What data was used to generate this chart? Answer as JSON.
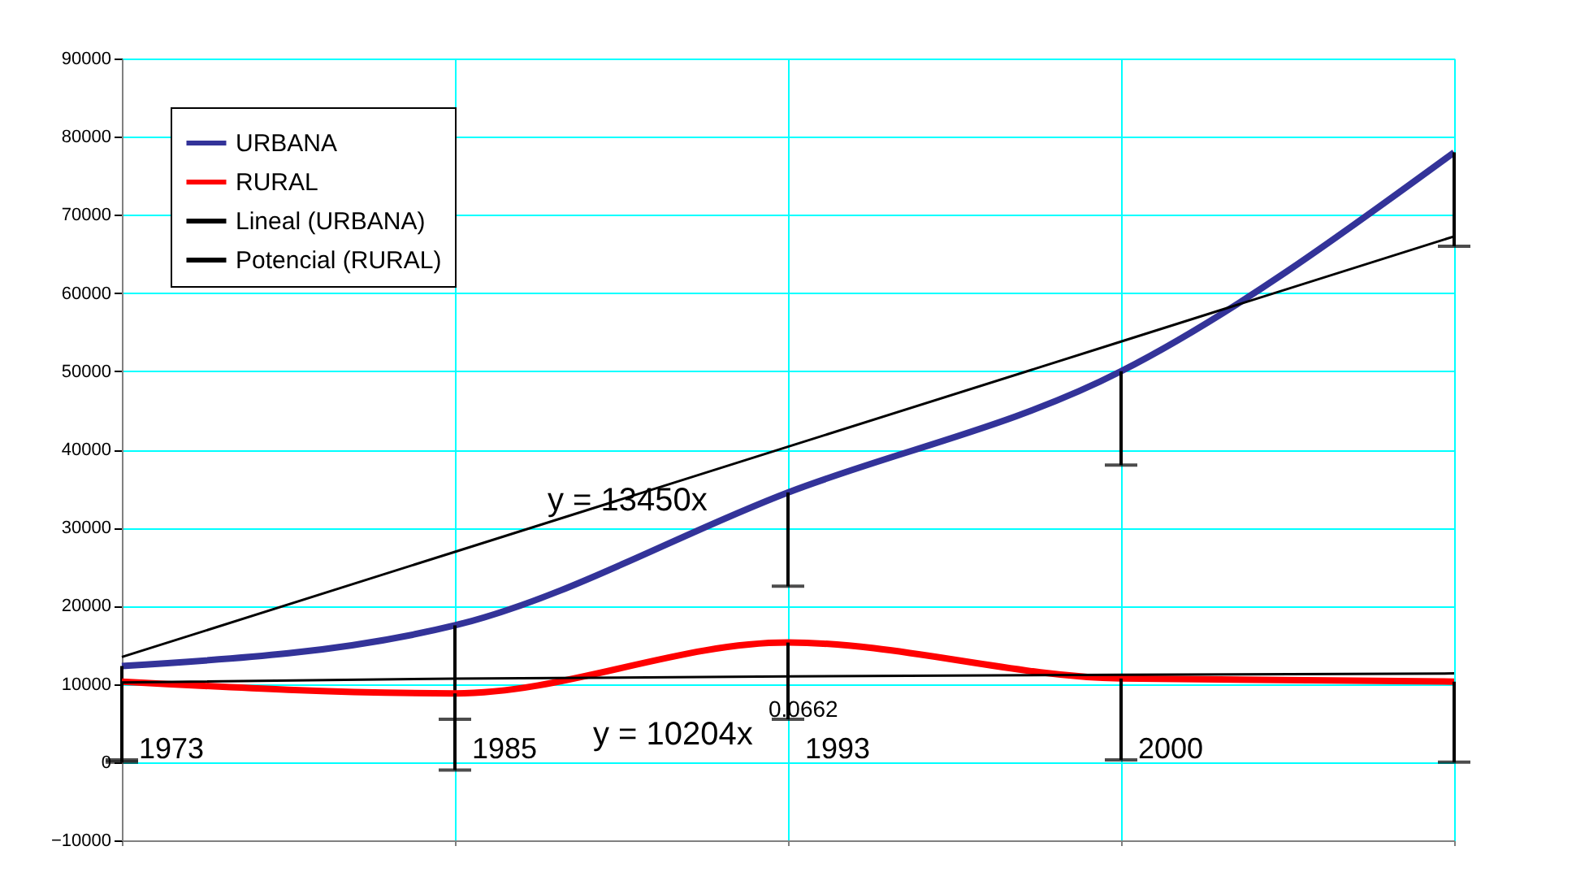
{
  "chart_data": {
    "type": "line",
    "categories": [
      "1973",
      "1985",
      "1993",
      "2000",
      null
    ],
    "ylim": [
      -10000,
      90000
    ],
    "yticks": [
      -10000,
      0,
      10000,
      20000,
      30000,
      40000,
      50000,
      60000,
      70000,
      80000,
      90000
    ],
    "grid": true,
    "legend": "top left",
    "marker": "none",
    "line_style": "solid",
    "series": [
      {
        "name": "URBANA",
        "color": "#333399",
        "values": [
          12300,
          17500,
          34500,
          50000,
          78000
        ],
        "errors": [
          [
            300,
            12300
          ],
          [
            5500,
            17500
          ],
          [
            22500,
            34500
          ],
          [
            38000,
            50000
          ],
          [
            66000,
            78000
          ]
        ]
      },
      {
        "name": "RURAL",
        "color": "#ff0000",
        "values": [
          10300,
          8800,
          15300,
          10700,
          10300
        ],
        "errors": [
          [
            0,
            10300
          ],
          [
            -1000,
            8800
          ],
          [
            5500,
            15300
          ],
          [
            300,
            10700
          ],
          [
            0,
            10300
          ]
        ]
      },
      {
        "name": "Lineal (URBANA)",
        "type": "line",
        "color": "#000000",
        "values": [
          13450,
          26900,
          40350,
          53800,
          67250
        ]
      },
      {
        "name": "Potencial (RURAL)",
        "type": "line",
        "color": "#000000",
        "values": [
          10204,
          10684,
          10975,
          11185,
          11351
        ]
      }
    ],
    "annotations": [
      "y = 13450x",
      "y = 10204x$^{0.0662}$"
    ]
  }
}
